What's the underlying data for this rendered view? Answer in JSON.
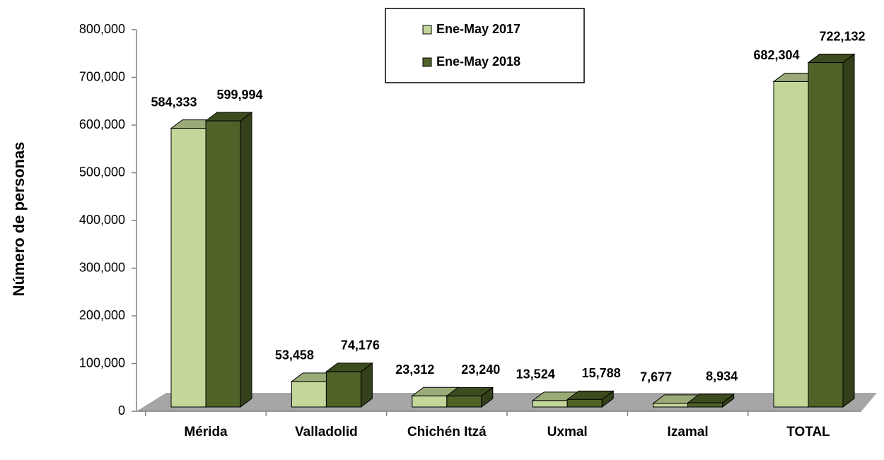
{
  "chart_data": {
    "type": "bar3d",
    "y_axis_label": "Número de personas",
    "categories": [
      "Mérida",
      "Valladolid",
      "Chichén Itzá",
      "Uxmal",
      "Izamal",
      "TOTAL"
    ],
    "series": [
      {
        "name": "Ene-May 2017",
        "color": "#c4d79b",
        "top_color": "#9bab77",
        "side_color": "#8a9a66",
        "values": [
          584333,
          53458,
          23312,
          13524,
          7677,
          682304
        ],
        "value_labels": [
          "584,333",
          "53,458",
          "23,312",
          "13,524",
          "7,677",
          "682,304"
        ]
      },
      {
        "name": "Ene-May 2018",
        "color": "#4f6228",
        "top_color": "#3d4c1f",
        "side_color": "#33401a",
        "values": [
          599994,
          74176,
          23240,
          15788,
          8934,
          722132
        ],
        "value_labels": [
          "599,994",
          "74,176",
          "23,240",
          "15,788",
          "8,934",
          "722,132"
        ]
      }
    ],
    "ylim": [
      0,
      800000
    ],
    "yticks": [
      0,
      {
        "value": 100000,
        "label": "100,000"
      },
      {
        "value": 200000,
        "label": "200,000"
      },
      {
        "value": 300000,
        "label": "300,000"
      },
      {
        "value": 400000,
        "label": "400,000"
      },
      {
        "value": 500000,
        "label": "500,000"
      },
      {
        "value": 600000,
        "label": "600,000"
      },
      {
        "value": 700000,
        "label": "700,000"
      },
      {
        "value": 800000,
        "label": "800,000"
      }
    ],
    "floor_color": "#a6a6a6",
    "legend": "top-center"
  }
}
